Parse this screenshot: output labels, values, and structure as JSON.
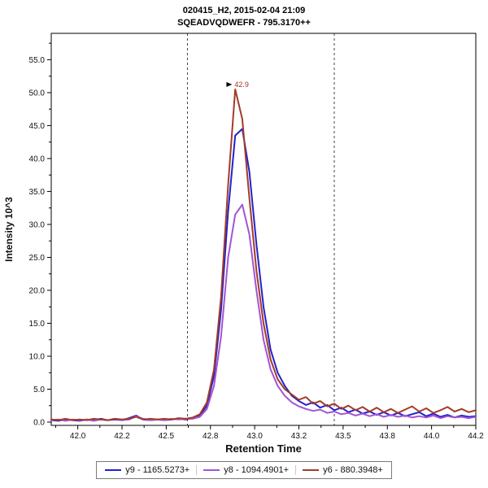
{
  "chart_data": {
    "type": "line",
    "title": "020415_H2, 2015-02-04 21:09",
    "subtitle": "SQEADVQDWEFR - 795.3170++",
    "xlabel": "Retention Time",
    "ylabel": "Intensity 10^3",
    "xlim": [
      41.85,
      44.25
    ],
    "ylim": [
      0,
      59
    ],
    "grid": false,
    "legend_position": "bottom",
    "x_ticks": {
      "values": [
        42.0,
        42.25,
        42.5,
        42.75,
        43.0,
        43.25,
        43.5,
        43.75,
        44.0,
        44.25
      ],
      "labels": [
        "42.0",
        "42.2",
        "42.5",
        "42.8",
        "43.0",
        "43.2",
        "43.5",
        "43.8",
        "44.0",
        "44.2"
      ]
    },
    "y_ticks": {
      "values": [
        0,
        5,
        10,
        15,
        20,
        25,
        30,
        35,
        40,
        45,
        50,
        55
      ],
      "labels": [
        "0.0",
        "5.0",
        "10.0",
        "15.0",
        "20.0",
        "25.0",
        "30.0",
        "35.0",
        "40.0",
        "45.0",
        "50.0",
        "55.0"
      ]
    },
    "peak_boundaries": [
      42.62,
      43.45
    ],
    "boundary_color": "#444444",
    "annotation": {
      "text": "42.9",
      "x": 42.9,
      "y": 50.5,
      "color": "#aa3326",
      "pointer_color": "#000000"
    },
    "x": [
      41.85,
      41.89,
      41.93,
      41.97,
      42.01,
      42.05,
      42.09,
      42.13,
      42.17,
      42.21,
      42.25,
      42.29,
      42.33,
      42.37,
      42.41,
      42.45,
      42.49,
      42.53,
      42.57,
      42.61,
      42.65,
      42.69,
      42.73,
      42.77,
      42.81,
      42.85,
      42.89,
      42.93,
      42.97,
      43.01,
      43.05,
      43.09,
      43.13,
      43.17,
      43.21,
      43.25,
      43.29,
      43.33,
      43.37,
      43.41,
      43.45,
      43.49,
      43.53,
      43.57,
      43.61,
      43.65,
      43.69,
      43.73,
      43.77,
      43.81,
      43.85,
      43.89,
      43.93,
      43.97,
      44.01,
      44.05,
      44.09,
      44.13,
      44.17,
      44.21,
      44.25
    ],
    "series": [
      {
        "name": "y9 - 1165.5273+",
        "color": "#2222cc",
        "values": [
          0.3,
          0.2,
          0.4,
          0.3,
          0.2,
          0.4,
          0.3,
          0.5,
          0.3,
          0.4,
          0.3,
          0.6,
          1.0,
          0.4,
          0.3,
          0.4,
          0.3,
          0.4,
          0.5,
          0.4,
          0.6,
          1.0,
          2.5,
          7.0,
          17.0,
          32.0,
          43.5,
          44.5,
          38.0,
          27.0,
          17.5,
          11.0,
          7.5,
          5.5,
          4.0,
          3.2,
          2.6,
          3.0,
          2.2,
          2.6,
          1.8,
          2.2,
          1.5,
          1.9,
          1.3,
          1.6,
          1.1,
          1.5,
          1.0,
          1.4,
          0.9,
          1.2,
          1.5,
          0.9,
          1.3,
          0.8,
          1.1,
          0.7,
          1.0,
          0.8,
          0.9
        ]
      },
      {
        "name": "y8 - 1094.4901+",
        "color": "#a254d4",
        "values": [
          0.3,
          0.4,
          0.2,
          0.4,
          0.3,
          0.4,
          0.2,
          0.4,
          0.3,
          0.5,
          0.3,
          0.4,
          0.9,
          0.5,
          0.3,
          0.4,
          0.3,
          0.5,
          0.4,
          0.5,
          0.5,
          0.8,
          2.0,
          5.5,
          13.0,
          25.0,
          31.5,
          33.0,
          28.5,
          20.0,
          12.5,
          8.0,
          5.5,
          4.0,
          3.0,
          2.4,
          2.0,
          1.7,
          1.9,
          1.4,
          1.6,
          1.2,
          1.4,
          1.0,
          1.3,
          0.9,
          1.2,
          0.8,
          1.1,
          0.8,
          1.0,
          0.7,
          0.9,
          0.7,
          1.0,
          0.6,
          0.9,
          0.7,
          0.8,
          0.6,
          0.8
        ]
      },
      {
        "name": "y6 - 880.3948+",
        "color": "#a33b28",
        "values": [
          0.4,
          0.3,
          0.5,
          0.3,
          0.4,
          0.3,
          0.5,
          0.4,
          0.3,
          0.5,
          0.4,
          0.5,
          0.8,
          0.4,
          0.5,
          0.4,
          0.5,
          0.4,
          0.6,
          0.5,
          0.7,
          1.2,
          3.0,
          8.0,
          19.0,
          36.0,
          50.5,
          46.0,
          34.0,
          23.0,
          15.0,
          9.5,
          6.5,
          5.0,
          4.2,
          3.4,
          3.8,
          2.8,
          3.2,
          2.4,
          2.8,
          2.0,
          2.5,
          1.8,
          2.3,
          1.6,
          2.2,
          1.5,
          2.0,
          1.4,
          1.9,
          2.4,
          1.6,
          2.1,
          1.4,
          1.8,
          2.3,
          1.6,
          2.0,
          1.5,
          1.8
        ]
      }
    ]
  }
}
